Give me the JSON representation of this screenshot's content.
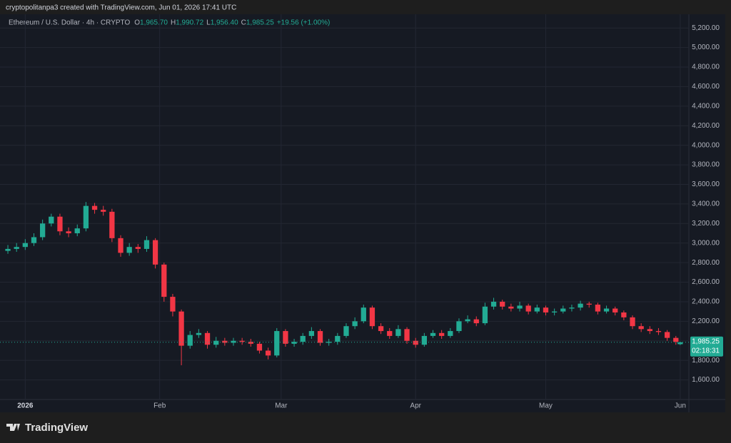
{
  "attribution": "cryptopolitanpa3 created with TradingView.com, Jun 01, 2026 17:41 UTC",
  "brand": "TradingView",
  "chart_data": {
    "type": "candlestick",
    "legend": {
      "symbol": "Ethereum / U.S. Dollar · 4h · CRYPTO",
      "ohlc": [
        {
          "label": "O",
          "value": "1,965.70"
        },
        {
          "label": "H",
          "value": "1,990.72"
        },
        {
          "label": "L",
          "value": "1,956.40"
        },
        {
          "label": "C",
          "value": "1,985.25"
        }
      ],
      "change": "+19.56 (+1.00%)"
    },
    "up_color": "#22ab94",
    "down_color": "#f23645",
    "x": [
      -4,
      -2,
      0,
      2,
      4,
      6,
      8,
      10,
      12,
      14,
      16,
      18,
      20,
      22,
      24,
      26,
      28,
      30,
      32,
      34,
      36,
      38,
      40,
      42,
      44,
      46,
      48,
      50,
      52,
      54,
      56,
      58,
      60,
      62,
      64,
      66,
      68,
      70,
      72,
      74,
      76,
      78,
      80,
      82,
      84,
      86,
      88,
      90,
      92,
      94,
      96,
      98,
      100,
      102,
      104,
      106,
      108,
      110,
      112,
      114,
      116,
      118,
      120,
      122,
      124,
      126,
      128,
      130,
      132,
      134,
      136,
      138,
      140,
      142,
      144,
      146,
      148,
      150,
      151
    ],
    "open": [
      2920,
      2940,
      2960,
      3000,
      3060,
      3200,
      3270,
      3120,
      3100,
      3150,
      3380,
      3340,
      3320,
      3050,
      2900,
      2960,
      2940,
      3030,
      2780,
      2450,
      2300,
      1950,
      2060,
      2080,
      1960,
      2000,
      1980,
      2000,
      1990,
      1970,
      1900,
      1850,
      2100,
      1970,
      1990,
      2050,
      2100,
      1980,
      1990,
      2050,
      2150,
      2200,
      2340,
      2150,
      2100,
      2050,
      2120,
      2000,
      1960,
      2050,
      2080,
      2050,
      2100,
      2200,
      2220,
      2180,
      2350,
      2400,
      2350,
      2330,
      2360,
      2300,
      2340,
      2290,
      2300,
      2330,
      2340,
      2380,
      2370,
      2300,
      2330,
      2290,
      2240,
      2150,
      2120,
      2100,
      2090,
      2030,
      1965.7
    ],
    "high": [
      2980,
      3000,
      3040,
      3100,
      3240,
      3300,
      3300,
      3160,
      3190,
      3420,
      3410,
      3380,
      3350,
      3080,
      3000,
      2990,
      3070,
      3050,
      2800,
      2480,
      2320,
      2100,
      2120,
      2100,
      2040,
      2030,
      2030,
      2030,
      2020,
      1990,
      1930,
      2130,
      2120,
      2020,
      2080,
      2140,
      2120,
      2020,
      2080,
      2180,
      2240,
      2370,
      2360,
      2180,
      2130,
      2160,
      2140,
      2030,
      2080,
      2110,
      2110,
      2130,
      2230,
      2260,
      2250,
      2390,
      2440,
      2420,
      2380,
      2400,
      2380,
      2370,
      2360,
      2330,
      2360,
      2370,
      2410,
      2400,
      2390,
      2360,
      2350,
      2310,
      2260,
      2180,
      2150,
      2130,
      2110,
      2050,
      1990.72
    ],
    "low": [
      2890,
      2910,
      2930,
      2970,
      3030,
      3170,
      3080,
      3060,
      3070,
      3120,
      3300,
      3280,
      3010,
      2860,
      2870,
      2900,
      2910,
      2740,
      2400,
      2250,
      1750,
      1920,
      2030,
      1920,
      1930,
      1950,
      1950,
      1960,
      1940,
      1870,
      1810,
      1830,
      1940,
      1940,
      1960,
      2020,
      1950,
      1950,
      1960,
      2030,
      2120,
      2180,
      2120,
      2070,
      2020,
      2030,
      1970,
      1930,
      1940,
      2030,
      2020,
      2030,
      2080,
      2180,
      2150,
      2160,
      2320,
      2320,
      2300,
      2300,
      2270,
      2280,
      2260,
      2260,
      2280,
      2300,
      2310,
      2340,
      2270,
      2280,
      2260,
      2210,
      2120,
      2090,
      2070,
      2060,
      2000,
      1960,
      1956.4
    ],
    "close": [
      2940,
      2960,
      3000,
      3060,
      3200,
      3270,
      3120,
      3100,
      3150,
      3380,
      3340,
      3320,
      3050,
      2900,
      2960,
      2940,
      3030,
      2780,
      2450,
      2300,
      1950,
      2060,
      2080,
      1960,
      2000,
      1980,
      2000,
      1990,
      1970,
      1900,
      1850,
      2100,
      1970,
      1990,
      2050,
      2100,
      1980,
      1990,
      2050,
      2150,
      2200,
      2340,
      2150,
      2100,
      2050,
      2120,
      2000,
      1960,
      2050,
      2080,
      2050,
      2100,
      2200,
      2220,
      2180,
      2350,
      2400,
      2350,
      2330,
      2360,
      2300,
      2340,
      2290,
      2300,
      2330,
      2340,
      2380,
      2370,
      2300,
      2330,
      2290,
      2240,
      2150,
      2120,
      2100,
      2090,
      2030,
      1990,
      1985.25
    ],
    "xlim": [
      -4.5,
      153
    ],
    "xticks": [
      {
        "value": 0,
        "label": "2026"
      },
      {
        "value": 31,
        "label": "Feb"
      },
      {
        "value": 59,
        "label": "Mar"
      },
      {
        "value": 90,
        "label": "Apr"
      },
      {
        "value": 120,
        "label": "May"
      },
      {
        "value": 151,
        "label": "Jun"
      }
    ],
    "ylim": [
      1400,
      5340
    ],
    "yticks": [
      {
        "value": 1600,
        "label": "1,600.00"
      },
      {
        "value": 1800,
        "label": "1,800.00"
      },
      {
        "value": 2000,
        "label": "2,000.00"
      },
      {
        "value": 2200,
        "label": "2,200.00"
      },
      {
        "value": 2400,
        "label": "2,400.00"
      },
      {
        "value": 2600,
        "label": "2,600.00"
      },
      {
        "value": 2800,
        "label": "2,800.00"
      },
      {
        "value": 3000,
        "label": "3,000.00"
      },
      {
        "value": 3200,
        "label": "3,200.00"
      },
      {
        "value": 3400,
        "label": "3,400.00"
      },
      {
        "value": 3600,
        "label": "3,600.00"
      },
      {
        "value": 3800,
        "label": "3,800.00"
      },
      {
        "value": 4000,
        "label": "4,000.00"
      },
      {
        "value": 4200,
        "label": "4,200.00"
      },
      {
        "value": 4400,
        "label": "4,400.00"
      },
      {
        "value": 4600,
        "label": "4,600.00"
      },
      {
        "value": 4800,
        "label": "4,800.00"
      },
      {
        "value": 5000,
        "label": "5,000.00"
      },
      {
        "value": 5200,
        "label": "5,200.00"
      }
    ],
    "grid": true,
    "last_price": {
      "value": 1985.25,
      "label": "1,985.25"
    },
    "countdown": "02:18:31"
  }
}
